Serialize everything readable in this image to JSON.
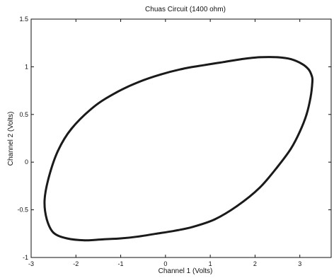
{
  "chart_data": {
    "type": "line",
    "title": "Chuas Circuit (1400 ohm)",
    "xlabel": "Channel 1 (Volts)",
    "ylabel": "Channel 2 (Volts)",
    "xlim": [
      -3,
      3.7
    ],
    "ylim": [
      -1,
      1.5
    ],
    "xticks": [
      -3,
      -2,
      -1,
      0,
      1,
      2,
      3
    ],
    "xtick_labels": [
      "-3",
      "-2",
      "-1",
      "0",
      "1",
      "2",
      "3"
    ],
    "yticks": [
      -1,
      -0.5,
      0,
      0.5,
      1,
      1.5
    ],
    "ytick_labels": [
      "-1",
      "-0.5",
      "0",
      "0.5",
      "1",
      "1.5"
    ],
    "grid": false,
    "series": [
      {
        "x": [
          3.28,
          3.24,
          3.15,
          3.0,
          2.8,
          2.5,
          2.1,
          1.6,
          1.1,
          0.6,
          0.2,
          -0.2,
          -0.6,
          -1.0,
          -1.4,
          -1.8,
          -2.2,
          -2.5,
          -2.65,
          -2.7,
          -2.6,
          -2.4,
          -2.1,
          -1.6,
          -1.1,
          -0.6,
          -0.1,
          0.4,
          0.9,
          1.3,
          1.7,
          2.1,
          2.5,
          2.8,
          3.05,
          3.2,
          3.27,
          3.28
        ],
        "y": [
          0.84,
          0.68,
          0.5,
          0.32,
          0.14,
          -0.05,
          -0.27,
          -0.46,
          -0.6,
          -0.68,
          -0.72,
          -0.75,
          -0.78,
          -0.8,
          -0.81,
          -0.82,
          -0.8,
          -0.74,
          -0.6,
          -0.4,
          -0.15,
          0.12,
          0.35,
          0.58,
          0.73,
          0.84,
          0.92,
          0.98,
          1.02,
          1.05,
          1.08,
          1.1,
          1.1,
          1.08,
          1.03,
          0.97,
          0.9,
          0.84
        ]
      }
    ],
    "line_color": "#1a1a1a"
  }
}
